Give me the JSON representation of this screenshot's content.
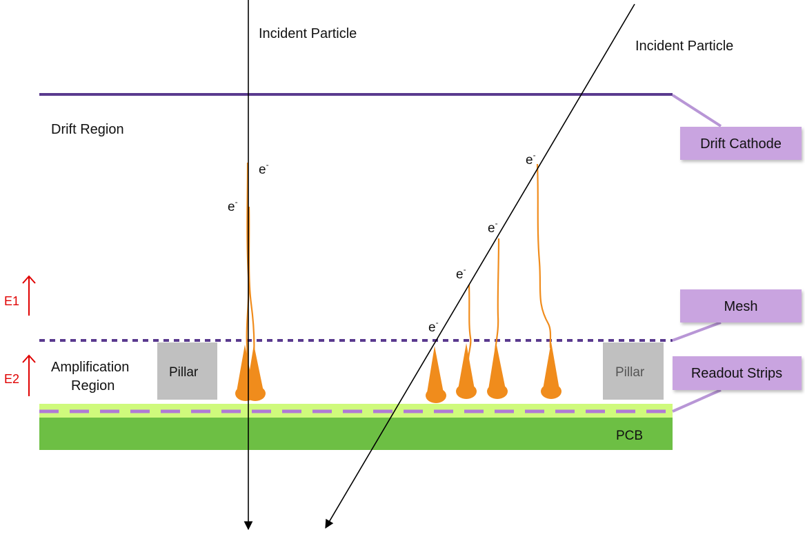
{
  "labels": {
    "incident_particle_1": "Incident Particle",
    "incident_particle_2": "Incident Particle",
    "drift_region": "Drift Region",
    "amplification_line1": "Amplification",
    "amplification_line2": "Region",
    "pillar_left": "Pillar",
    "pillar_right": "Pillar",
    "pcb": "PCB",
    "e1": "E1",
    "e2": "E2"
  },
  "callouts": {
    "drift_cathode": "Drift Cathode",
    "mesh": "Mesh",
    "readout_strips": "Readout Strips"
  },
  "electron": {
    "base": "e",
    "charge": "-"
  },
  "colors": {
    "drift_cathode_line": "#5a3a8e",
    "mesh_line": "#5a3a8e",
    "callout_fill": "#c9a4e0",
    "callout_leader": "#b896d6",
    "readout_layer": "#cffa7c",
    "readout_dash": "#b07ad6",
    "pcb": "#6dbf44",
    "pillar": "#c0c0c0",
    "avalanche": "#f08c1c",
    "field_arrow": "#e00000",
    "particle_track": "#000000"
  }
}
